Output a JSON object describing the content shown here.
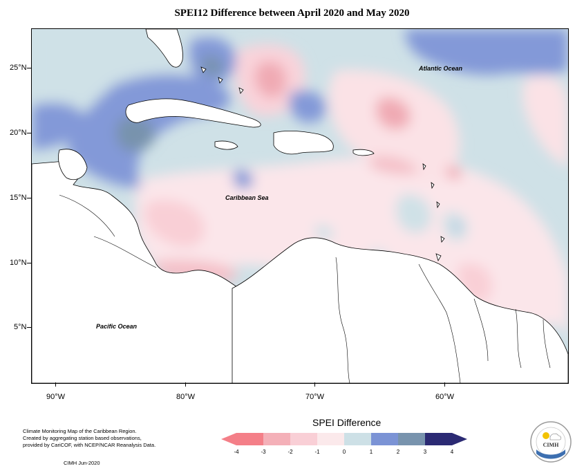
{
  "title": "SPEI12 Difference between April 2020 and May 2020",
  "map": {
    "lat_labels": [
      "25°N",
      "20°N",
      "15°N",
      "10°N",
      "5°N"
    ],
    "lon_labels": [
      "90°W",
      "80°W",
      "70°W",
      "60°W"
    ],
    "places": {
      "atlantic": "Atlantic Ocean",
      "caribbean": "Caribbean Sea",
      "pacific": "Pacific Ocean"
    }
  },
  "legend": {
    "title": "SPEI Difference",
    "ticks": [
      "-4",
      "-3",
      "-2",
      "-1",
      "0",
      "1",
      "2",
      "3",
      "4"
    ],
    "colors": [
      "#f47f88",
      "#f4b0b8",
      "#f9cfd6",
      "#fbe9eb",
      "#cde0e6",
      "#7b93d5",
      "#7893ad",
      "#50608a",
      "#2b2a73"
    ]
  },
  "credit": {
    "line1": "Climate Monitoring Map of the Caribbean Region.",
    "line2": "Created by aggregating station based observations,",
    "line3": "provided by CariCOF, with NCEP/NCAR Reanalysis Data.",
    "stamp": "CIMH  Jun-2020"
  },
  "logo": {
    "text": "CIMH"
  }
}
